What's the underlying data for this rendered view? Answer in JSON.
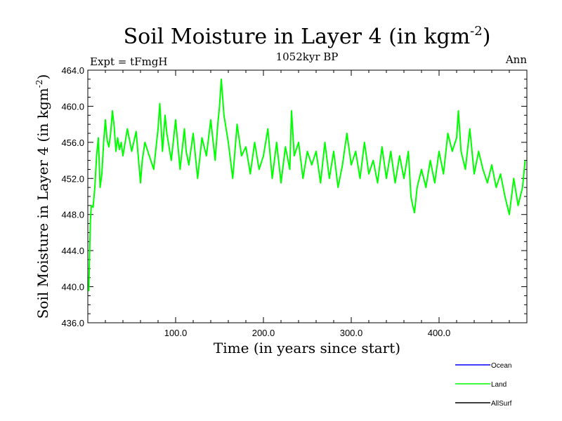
{
  "chart_data": {
    "type": "line",
    "title": "Soil Moisture in Layer 4 (in kgm",
    "title_sup": "-2",
    "title_close": ")",
    "subtitle_left": "Expt = tFmgH",
    "subtitle_center": "1052kyr BP",
    "subtitle_right": "Ann",
    "xlabel": "Time (in years since start)",
    "ylabel": "Soil Moisture in Layer 4 (in kgm",
    "ylabel_sup": "-2",
    "ylabel_close": ")",
    "xlim": [
      0,
      500
    ],
    "ylim": [
      436,
      464
    ],
    "x_ticks": [
      100,
      200,
      300,
      400
    ],
    "x_tick_labels": [
      "100.0",
      "200.0",
      "300.0",
      "400.0"
    ],
    "y_ticks": [
      436,
      440,
      444,
      448,
      452,
      456,
      460,
      464
    ],
    "y_tick_labels": [
      "436.0",
      "440.0",
      "444.0",
      "448.0",
      "452.0",
      "456.0",
      "460.0",
      "464.0"
    ],
    "grid": false,
    "legend_position": "bottom-right",
    "legend": [
      {
        "name": "Ocean",
        "color": "#0000ff"
      },
      {
        "name": "Land",
        "color": "#00ff00"
      },
      {
        "name": "AllSurf",
        "color": "#000000"
      }
    ],
    "series": [
      {
        "name": "Land",
        "color": "#00ff00",
        "x": [
          1,
          2,
          3,
          4,
          6,
          8,
          10,
          12,
          14,
          16,
          18,
          20,
          22,
          24,
          26,
          28,
          30,
          32,
          34,
          36,
          38,
          40,
          45,
          50,
          55,
          60,
          62,
          65,
          70,
          75,
          80,
          82,
          85,
          88,
          90,
          95,
          100,
          105,
          110,
          112,
          115,
          120,
          125,
          130,
          135,
          140,
          145,
          148,
          150,
          152,
          155,
          160,
          165,
          170,
          175,
          180,
          185,
          190,
          195,
          200,
          205,
          210,
          215,
          220,
          225,
          230,
          232,
          235,
          240,
          245,
          250,
          255,
          260,
          265,
          270,
          275,
          280,
          285,
          290,
          295,
          300,
          305,
          310,
          315,
          320,
          325,
          330,
          335,
          340,
          345,
          350,
          355,
          360,
          365,
          368,
          370,
          372,
          375,
          380,
          385,
          390,
          395,
          400,
          405,
          410,
          415,
          420,
          422,
          425,
          430,
          435,
          440,
          445,
          450,
          455,
          460,
          465,
          470,
          475,
          480,
          485,
          490,
          495,
          498
        ],
        "values": [
          439.5,
          443.5,
          447.5,
          449.0,
          448.8,
          451.0,
          454.5,
          456.5,
          451.0,
          452.5,
          456.0,
          458.5,
          456.2,
          455.5,
          457.0,
          459.5,
          457.8,
          455.0,
          456.5,
          455.2,
          456.0,
          454.5,
          457.5,
          455.0,
          457.2,
          451.5,
          454.0,
          456.0,
          454.5,
          453.0,
          457.5,
          460.3,
          455.0,
          459.0,
          457.0,
          454.0,
          458.5,
          453.0,
          457.5,
          455.0,
          453.5,
          457.0,
          452.0,
          456.5,
          454.5,
          458.5,
          454.0,
          458.0,
          460.0,
          463.0,
          459.0,
          456.0,
          452.0,
          458.0,
          454.5,
          455.5,
          452.5,
          456.0,
          453.0,
          454.5,
          457.5,
          452.0,
          456.0,
          451.5,
          455.5,
          453.0,
          459.5,
          454.5,
          456.0,
          452.0,
          455.0,
          453.5,
          455.0,
          451.5,
          456.0,
          452.0,
          455.0,
          451.0,
          453.5,
          457.0,
          453.5,
          455.0,
          452.0,
          456.0,
          452.5,
          454.0,
          451.5,
          455.5,
          452.0,
          455.0,
          451.5,
          454.5,
          452.0,
          455.0,
          450.0,
          449.0,
          448.2,
          451.0,
          453.0,
          451.0,
          454.0,
          451.5,
          455.0,
          452.5,
          457.0,
          455.0,
          456.5,
          459.5,
          455.0,
          453.0,
          457.5,
          452.5,
          455.0,
          453.0,
          451.5,
          453.5,
          451.0,
          452.5,
          450.0,
          448.0,
          452.0,
          449.0,
          451.0,
          454.0
        ]
      }
    ]
  }
}
